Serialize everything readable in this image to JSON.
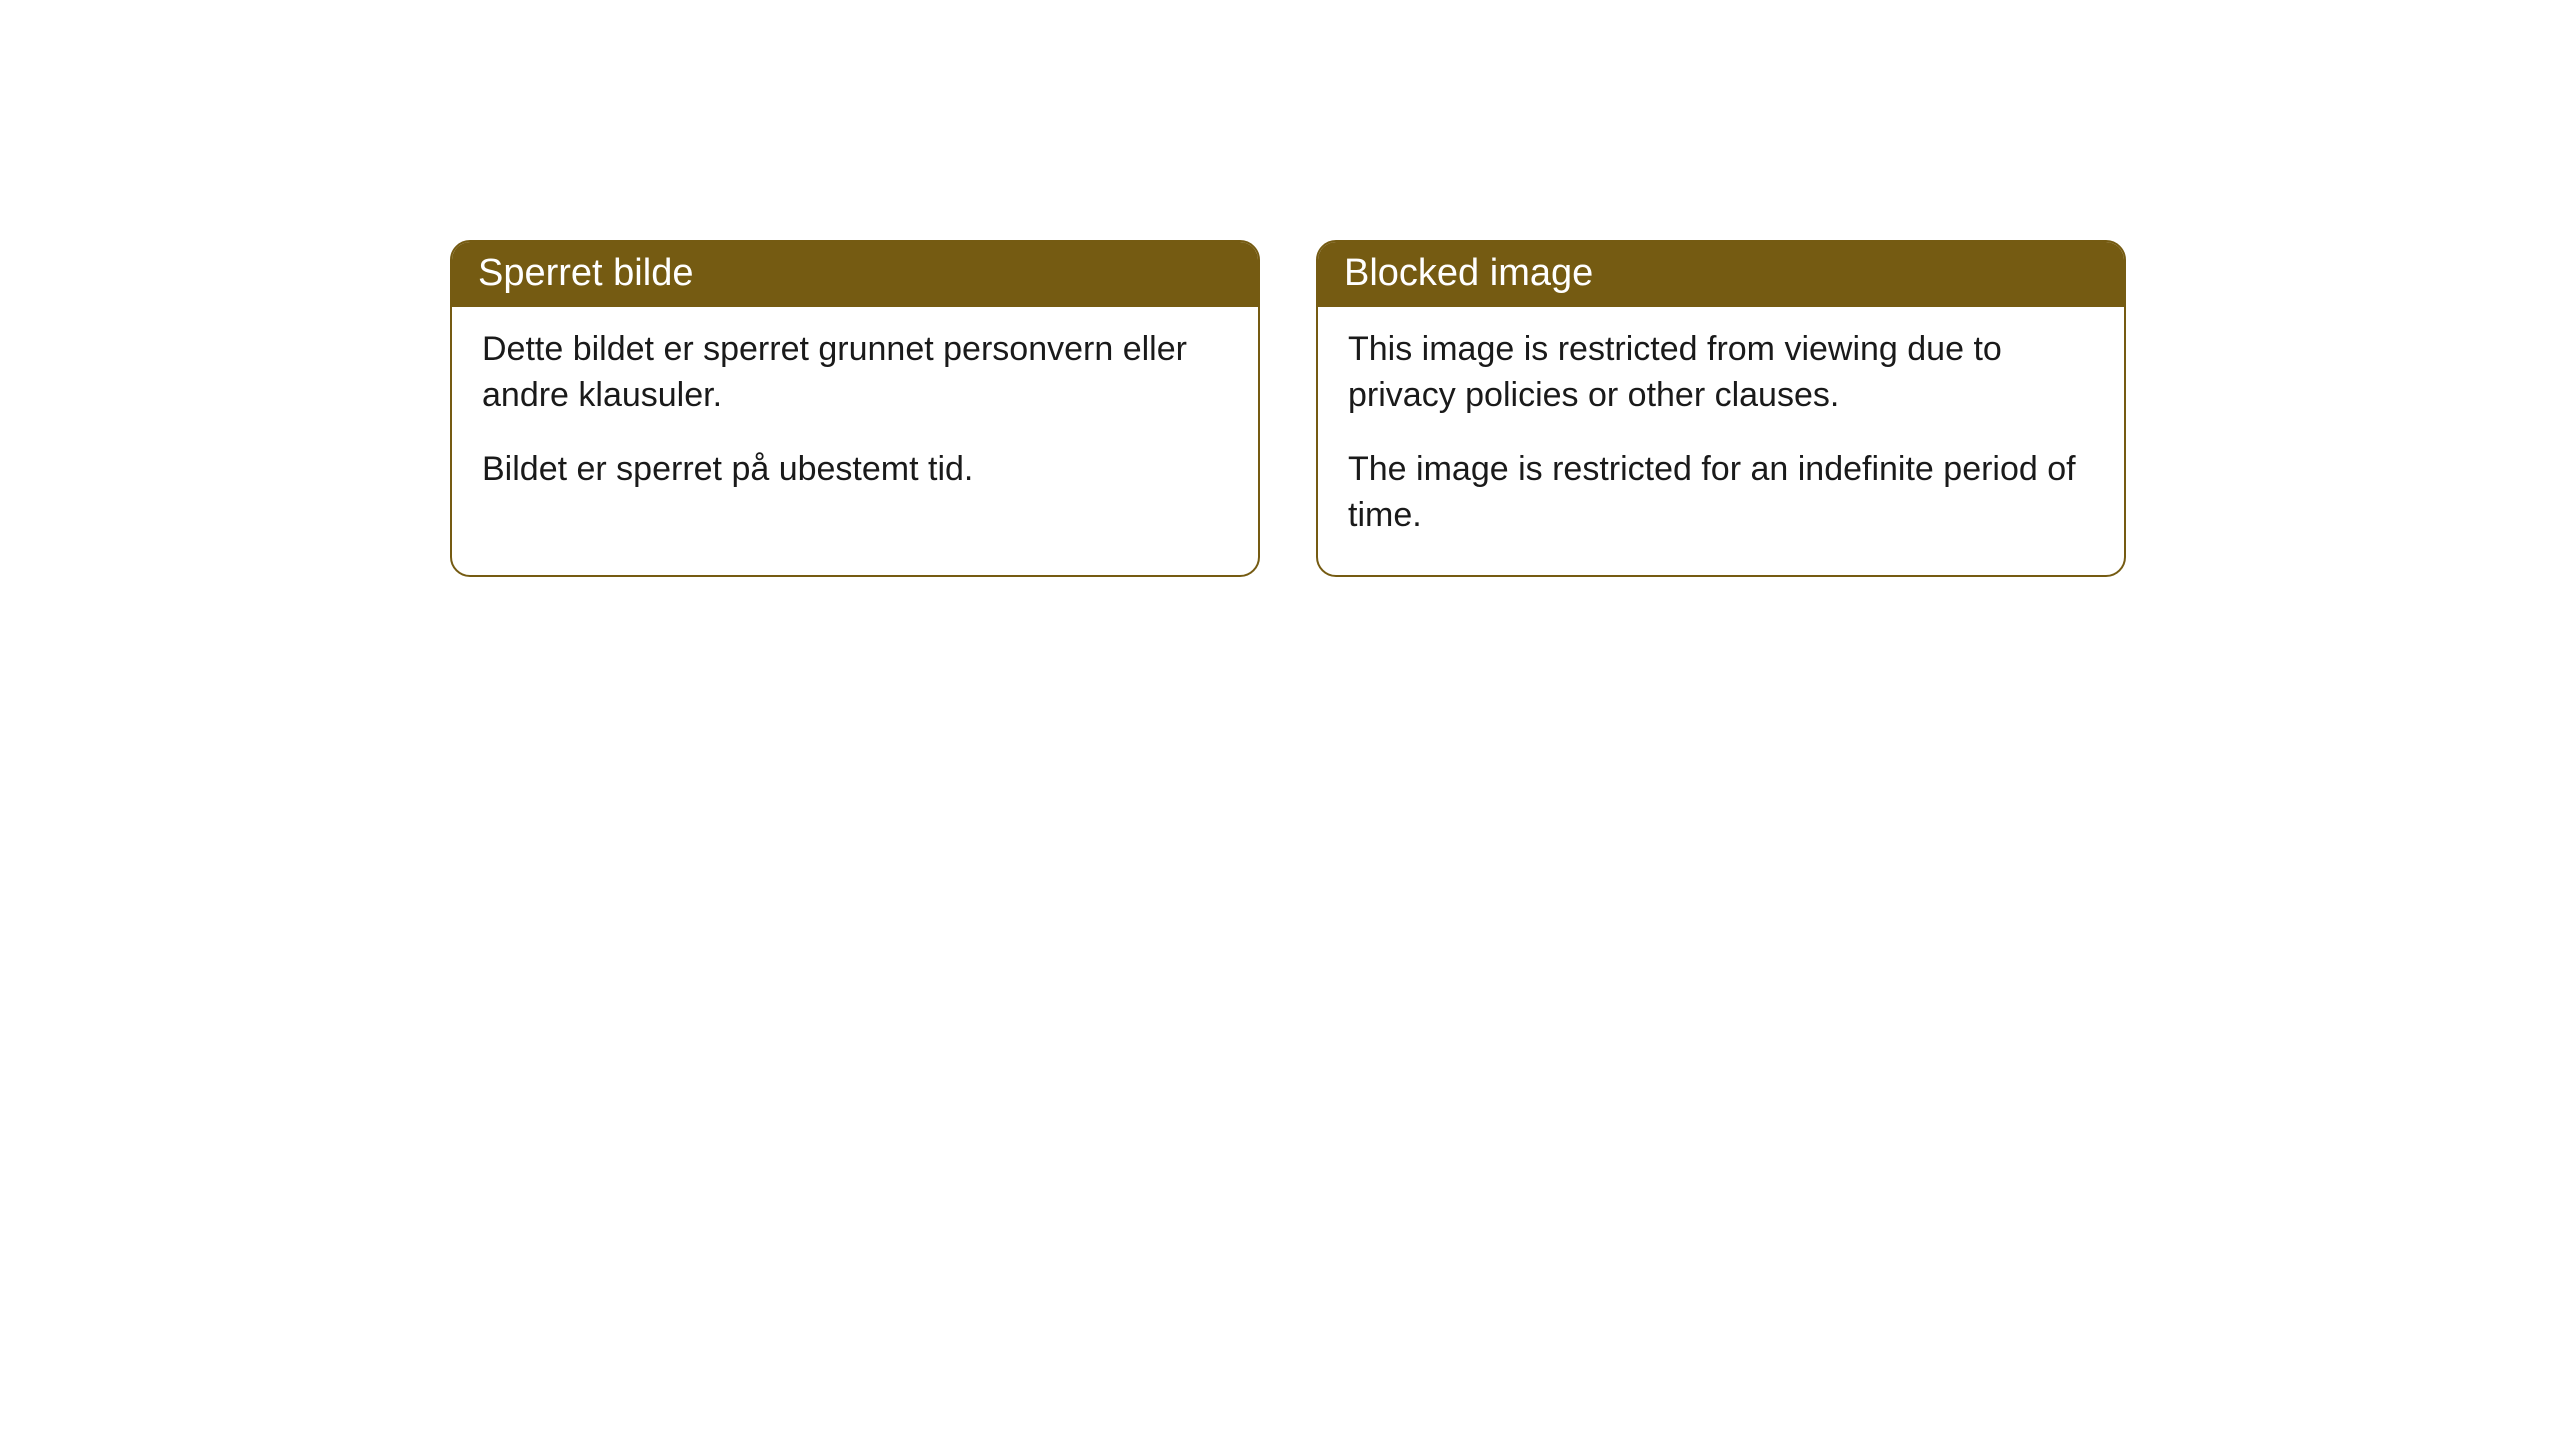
{
  "cards": [
    {
      "title": "Sperret bilde",
      "paragraph1": "Dette bildet er sperret grunnet personvern eller andre klausuler.",
      "paragraph2": "Bildet er sperret på ubestemt tid."
    },
    {
      "title": "Blocked image",
      "paragraph1": "This image is restricted from viewing due to privacy policies or other clauses.",
      "paragraph2": "The image is restricted for an indefinite period of time."
    }
  ],
  "styles": {
    "header_background": "#755b12",
    "header_text_color": "#ffffff",
    "border_color": "#755b12",
    "body_text_color": "#1a1a1a",
    "page_background": "#ffffff",
    "border_radius": 20,
    "header_fontsize": 38,
    "body_fontsize": 34
  }
}
